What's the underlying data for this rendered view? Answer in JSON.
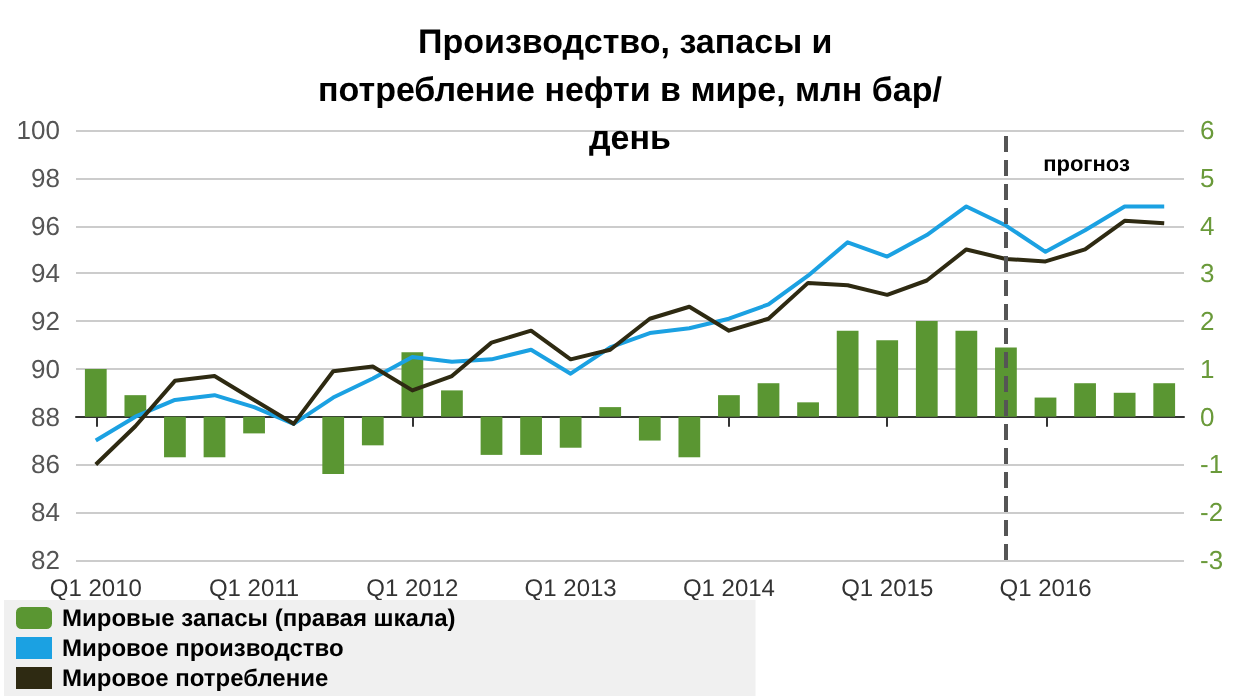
{
  "chart_data": {
    "type": "line",
    "title": "Производство, запасы и потребление нефти в мире, млн бар/день",
    "categories": [
      "Q1 2010",
      null,
      null,
      null,
      "Q1 2011",
      null,
      null,
      null,
      "Q1 2012",
      null,
      null,
      null,
      "Q1 2013",
      null,
      null,
      null,
      "Q1 2014",
      null,
      null,
      null,
      "Q1 2015",
      null,
      null,
      null,
      "Q1 2016",
      null,
      null,
      null
    ],
    "series": [
      {
        "name": "Мировые запасы (правая шкала)",
        "type": "bar",
        "axis": "y2",
        "color": "#5a9632",
        "values": [
          1.0,
          0.45,
          -0.85,
          -0.85,
          -0.35,
          0,
          -1.2,
          -0.6,
          1.35,
          0.55,
          -0.8,
          -0.8,
          -0.65,
          0.2,
          -0.5,
          -0.85,
          0.45,
          0.7,
          0.3,
          1.8,
          1.6,
          2.0,
          1.8,
          1.45,
          0.4,
          0.7,
          0.5,
          0.7
        ]
      },
      {
        "name": "Мировое производство",
        "color": "#1ba1e2",
        "values": [
          87.0,
          88.0,
          88.7,
          88.9,
          88.4,
          87.7,
          88.8,
          89.6,
          90.5,
          90.3,
          90.4,
          90.8,
          89.8,
          90.9,
          91.5,
          91.7,
          92.1,
          92.7,
          93.9,
          95.3,
          94.7,
          95.6,
          96.8,
          96.0,
          94.9,
          95.8,
          96.8,
          96.8
        ]
      },
      {
        "name": "Мировое потребление",
        "color": "#2e2a12",
        "values": [
          86.0,
          87.6,
          89.5,
          89.7,
          88.7,
          87.7,
          89.9,
          90.1,
          89.1,
          89.7,
          91.1,
          91.6,
          90.4,
          90.8,
          92.1,
          92.6,
          91.6,
          92.1,
          93.6,
          93.5,
          93.1,
          93.7,
          95.0,
          94.6,
          94.5,
          95.0,
          96.2,
          96.1
        ]
      }
    ],
    "ylim": [
      82,
      100
    ],
    "yticks": [
      82,
      84,
      86,
      88,
      90,
      92,
      94,
      96,
      98,
      100
    ],
    "y2lim": [
      -3,
      6
    ],
    "y2ticks": [
      -3,
      -2,
      -1,
      0,
      1,
      2,
      3,
      4,
      5,
      6
    ],
    "annotations": [
      "прогноз"
    ],
    "grid": "y",
    "legend": "bottom left",
    "marker": "none"
  }
}
